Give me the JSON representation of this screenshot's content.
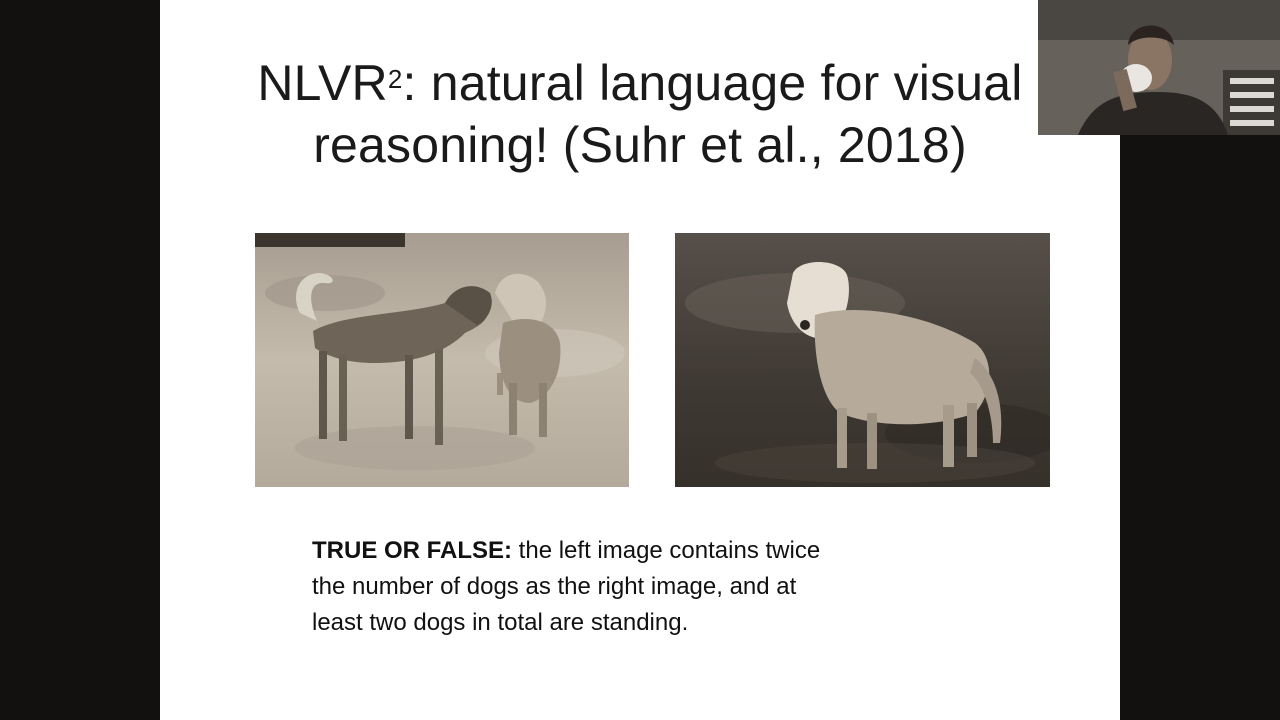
{
  "slide": {
    "title_prefix": "NLVR",
    "title_superscript": "2",
    "title_line1_rest": ": natural language for  visual",
    "title_line2": "reasoning! (Suhr et al., 2018)",
    "question_label": "TRUE OR FALSE:",
    "question_line1": " the left image contains twice",
    "question_line2": "the number of dogs as the right image, and at",
    "question_line3": "least two dogs in total are standing."
  },
  "images": {
    "left": "two dogs standing on sand",
    "right": "one dog standing on grass"
  },
  "colors": {
    "background": "#121110",
    "slide": "#ffffff",
    "sepia_light": "#c9c0b4",
    "sepia_dark": "#3b352e"
  }
}
